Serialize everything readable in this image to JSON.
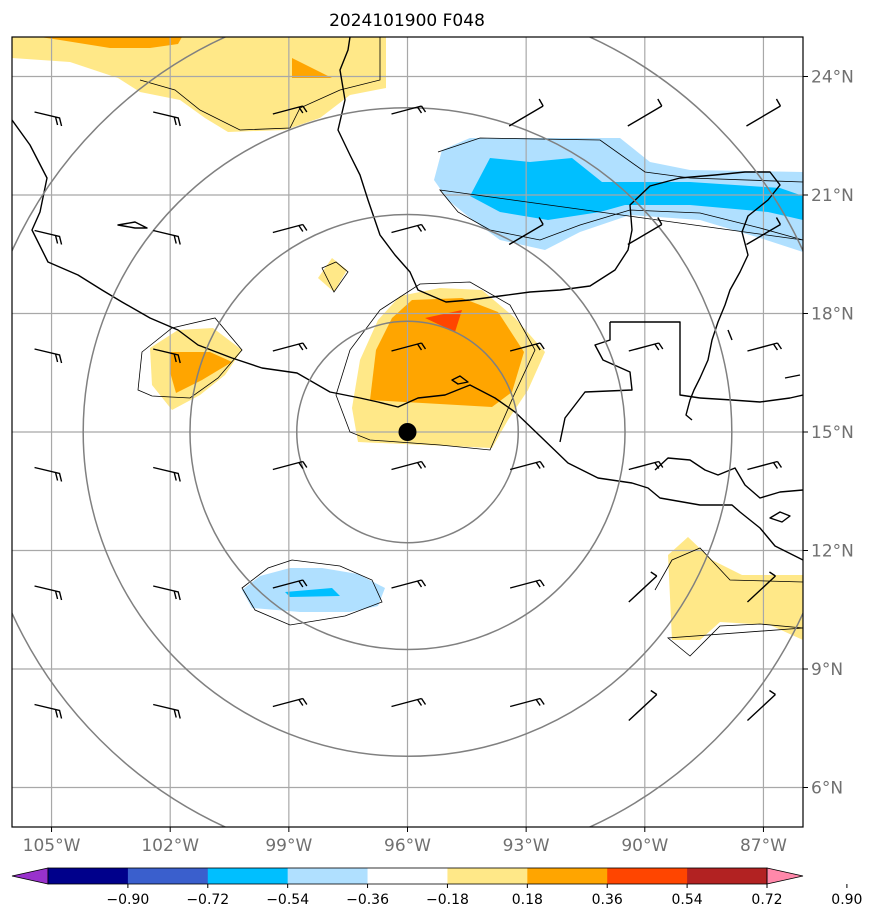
{
  "title": "2024101900 F048",
  "map": {
    "lon_range": [
      -106,
      -86
    ],
    "lat_range": [
      5,
      25
    ],
    "lon_ticks": [
      {
        "value": -105,
        "label": "105°W"
      },
      {
        "value": -102,
        "label": "102°W"
      },
      {
        "value": -99,
        "label": "99°W"
      },
      {
        "value": -96,
        "label": "96°W"
      },
      {
        "value": -93,
        "label": "93°W"
      },
      {
        "value": -90,
        "label": "90°W"
      },
      {
        "value": -87,
        "label": "87°W"
      }
    ],
    "lat_ticks": [
      {
        "value": 24,
        "label": "24°N"
      },
      {
        "value": 21,
        "label": "21°N"
      },
      {
        "value": 18,
        "label": "18°N"
      },
      {
        "value": 15,
        "label": "15°N"
      },
      {
        "value": 12,
        "label": "12°N"
      },
      {
        "value": 9,
        "label": "9°N"
      },
      {
        "value": 6,
        "label": "6°N"
      }
    ],
    "center": {
      "lon": -96.0,
      "lat": 15.0
    },
    "range_rings_deg": [
      2.8,
      5.5,
      8.2,
      11.0
    ],
    "colors": {
      "grid": "#a8a8a8",
      "rings": "#808080",
      "coast": "#000000",
      "pos_weak": "#ffe888",
      "pos_mid": "#ffa500",
      "pos_strong": "#ff4500",
      "neg_weak": "#b0e0ff",
      "neg_mid": "#00bfff"
    },
    "wind_barbs": {
      "lons": [
        -105,
        -102,
        -99,
        -96,
        -93,
        -90,
        -87
      ],
      "lats": [
        23,
        20,
        17,
        14,
        11,
        8
      ]
    }
  },
  "colorbar": {
    "colors": [
      "#9932cc",
      "#00008b",
      "#3a5fcd",
      "#00bfff",
      "#b0e0ff",
      "#ffffff",
      "#ffe888",
      "#ffa500",
      "#ff4500",
      "#b22222",
      "#ff88aa"
    ],
    "tick_labels": [
      "−0.90",
      "−0.72",
      "−0.54",
      "−0.36",
      "−0.18",
      "0.18",
      "0.36",
      "0.54",
      "0.72",
      "0.90"
    ]
  }
}
